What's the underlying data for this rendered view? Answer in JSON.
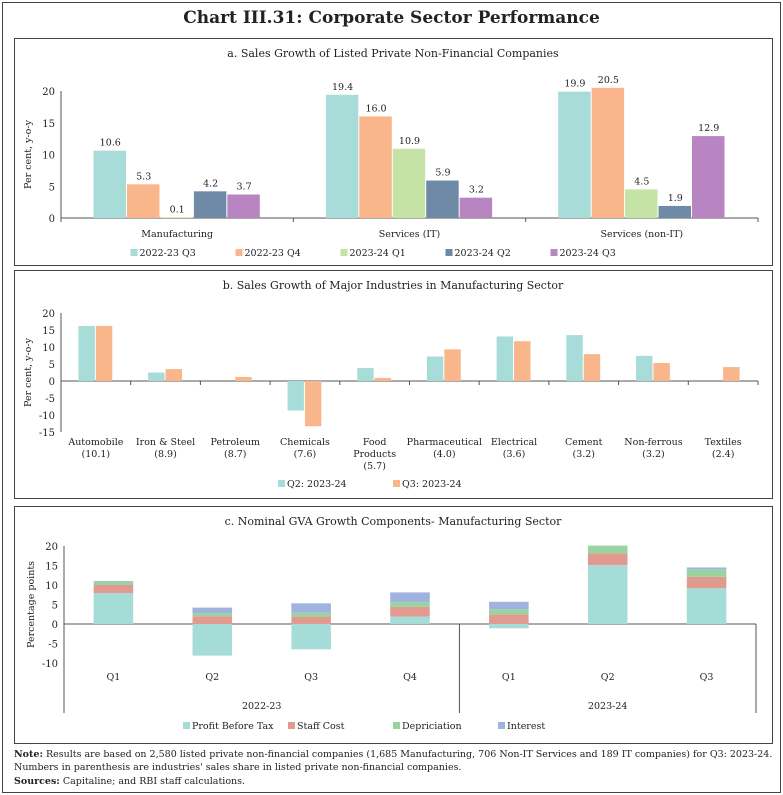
{
  "title": "Chart III.31: Corporate Sector Performance",
  "chart_data": [
    {
      "type": "bar",
      "title": "a. Sales Growth of Listed Private Non-Financial Companies",
      "ylabel": "Per cent, y-o-y",
      "ylim": [
        0,
        20
      ],
      "yticks": [
        0,
        5,
        10,
        15,
        20
      ],
      "categories": [
        "Manufacturing",
        "Services (IT)",
        "Services (non-IT)"
      ],
      "series": [
        {
          "name": "2022-23 Q3",
          "color": "#a8dcd9",
          "values": [
            10.6,
            19.4,
            19.9
          ],
          "labels": [
            "10.6",
            "19.4",
            "19.9"
          ]
        },
        {
          "name": "2022-23 Q4",
          "color": "#f8b68a",
          "values": [
            5.3,
            16.0,
            20.5
          ],
          "labels": [
            "5.3",
            "16.0",
            "20.5"
          ]
        },
        {
          "name": "2023-24 Q1",
          "color": "#c6e3a6",
          "values": [
            0.1,
            10.9,
            4.5
          ],
          "labels": [
            "0.1",
            "10.9",
            "4.5"
          ]
        },
        {
          "name": "2023-24 Q2",
          "color": "#6e8aa6",
          "values": [
            4.2,
            5.9,
            1.9
          ],
          "labels": [
            "4.2",
            "5.9",
            "1.9"
          ]
        },
        {
          "name": "2023-24 Q3",
          "color": "#b884c2",
          "values": [
            3.7,
            3.2,
            12.9
          ],
          "labels": [
            "3.7",
            "3.2",
            "12.9"
          ]
        }
      ]
    },
    {
      "type": "bar",
      "title": "b. Sales Growth of Major Industries in Manufacturing Sector",
      "ylabel": "Per cent, y-o-y",
      "ylim": [
        -15,
        20
      ],
      "yticks": [
        -15,
        -10,
        -5,
        0,
        5,
        10,
        15,
        20
      ],
      "categories": [
        [
          "Automobile",
          "(10.1)"
        ],
        [
          "Iron & Steel",
          "(8.9)"
        ],
        [
          "Petroleum",
          "(8.7)"
        ],
        [
          "Chemicals",
          "(7.6)"
        ],
        [
          "Food",
          "Products",
          "(5.7)"
        ],
        [
          "Pharmaceutical",
          "(4.0)"
        ],
        [
          "Electrical",
          "(3.6)"
        ],
        [
          "Cement",
          "(3.2)"
        ],
        [
          "Non-ferrous",
          "(3.2)"
        ],
        [
          "Textiles",
          "(2.4)"
        ]
      ],
      "series": [
        {
          "name": "Q2: 2023-24",
          "color": "#a8dcd9",
          "values": [
            16.2,
            2.5,
            0,
            -8.7,
            3.8,
            7.2,
            13.1,
            13.5,
            7.4,
            0
          ]
        },
        {
          "name": "Q3: 2023-24",
          "color": "#f8b68a",
          "values": [
            16.2,
            3.5,
            1.2,
            -13.3,
            0.9,
            9.3,
            11.7,
            7.9,
            5.3,
            4.1
          ]
        }
      ]
    },
    {
      "type": "bar",
      "stacked": true,
      "title": "c. Nominal GVA Growth Components- Manufacturing Sector",
      "ylabel": "Percentage points",
      "ylim": [
        -10,
        20
      ],
      "yticks": [
        -10,
        -5,
        0,
        5,
        10,
        15,
        20
      ],
      "categories": [
        "Q1",
        "Q2",
        "Q3",
        "Q4",
        "Q1",
        "Q2",
        "Q3"
      ],
      "groups": [
        {
          "label": "2022-23",
          "count": 4
        },
        {
          "label": "2023-24",
          "count": 3
        }
      ],
      "series": [
        {
          "name": "Profit Before Tax",
          "color": "#a6dcd8",
          "values": [
            7.9,
            -8.1,
            -6.5,
            1.9,
            -1.1,
            15.1,
            9.2
          ]
        },
        {
          "name": "Staff Cost",
          "color": "#e19a90",
          "values": [
            2.1,
            2.0,
            1.9,
            2.5,
            2.5,
            3.0,
            2.9
          ]
        },
        {
          "name": "Depriciation",
          "color": "#98d3a0",
          "values": [
            0.9,
            0.8,
            1.0,
            1.2,
            1.3,
            2.0,
            1.9
          ]
        },
        {
          "name": "Interest",
          "color": "#9fb3df",
          "values": [
            0.1,
            1.4,
            2.4,
            2.5,
            1.9,
            0,
            0.5
          ]
        }
      ]
    }
  ],
  "note": {
    "label": "Note:",
    "text": " Results are based on 2,580 listed private non-financial companies (1,685 Manufacturing, 706 Non-IT Services and 189 IT companies) for Q3: 2023-24. Numbers in parenthesis are industries' sales share in listed private non-financial companies."
  },
  "sources": {
    "label": "Sources:",
    "text": " Capitaline; and RBI staff calculations."
  }
}
